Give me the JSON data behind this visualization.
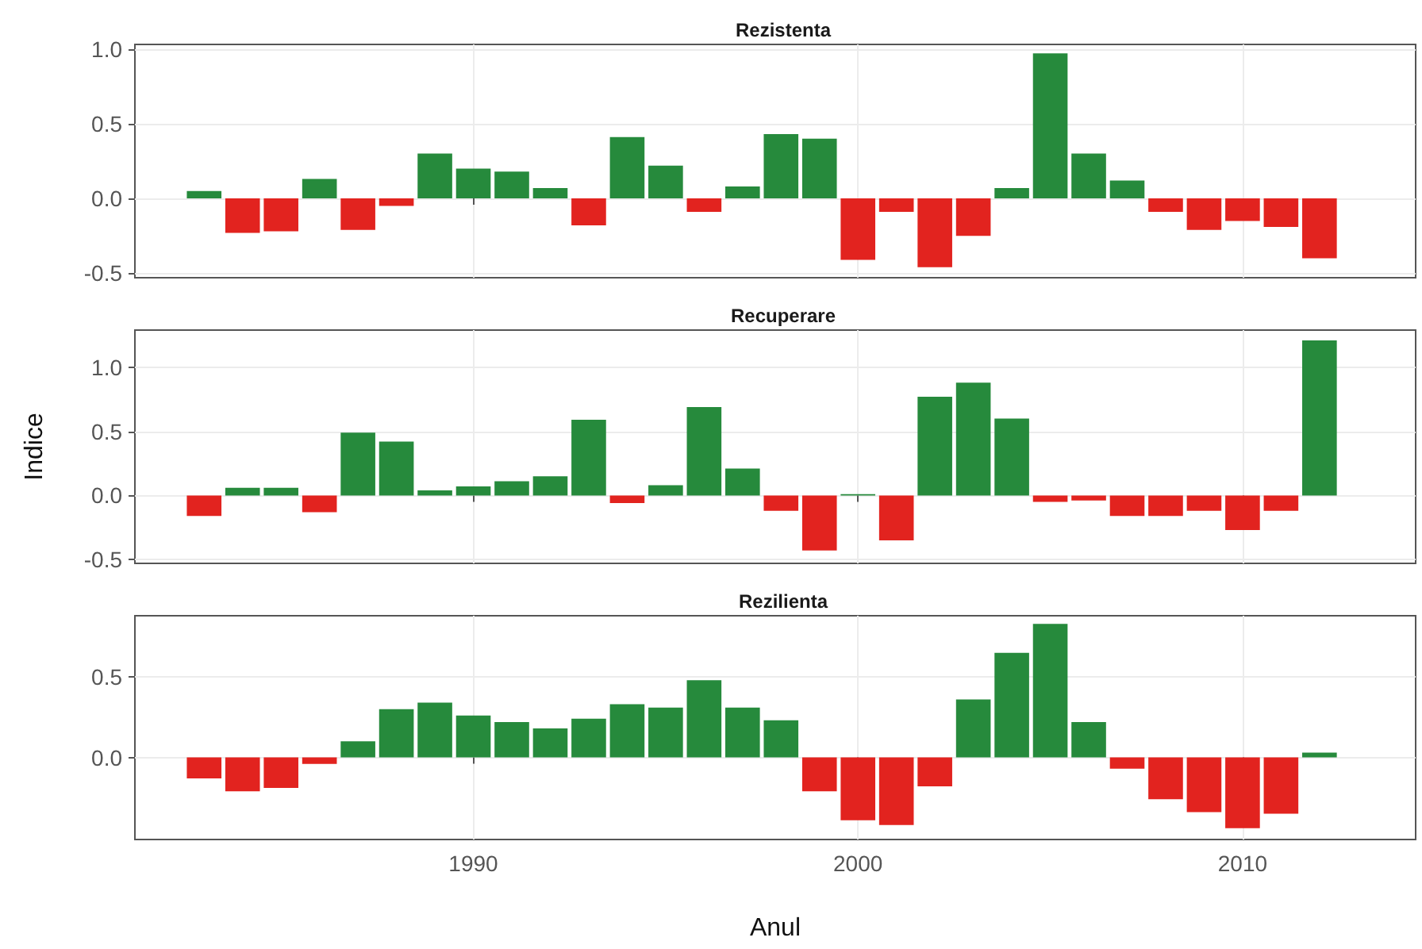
{
  "chart_data": [
    {
      "type": "bar",
      "title": "Rezistenta",
      "tick_labels": "y",
      "grid": true,
      "x": [
        1983,
        1984,
        1985,
        1986,
        1987,
        1988,
        1989,
        1990,
        1991,
        1992,
        1993,
        1994,
        1995,
        1996,
        1997,
        1998,
        1999,
        2000,
        2001,
        2002,
        2003,
        2004,
        2005,
        2006,
        2007,
        2008,
        2009,
        2010,
        2011,
        2012
      ],
      "values": [
        0.05,
        -0.23,
        -0.22,
        0.13,
        -0.21,
        -0.05,
        0.3,
        0.2,
        0.18,
        0.07,
        -0.18,
        0.41,
        0.22,
        -0.09,
        0.08,
        0.43,
        0.4,
        -0.41,
        -0.09,
        -0.46,
        -0.25,
        0.07,
        0.97,
        0.3,
        0.12,
        -0.09,
        -0.21,
        -0.15,
        -0.19,
        -0.4
      ],
      "colors": [
        "#268a3c",
        "#e2231f",
        "#e2231f",
        "#268a3c",
        "#e2231f",
        "#e2231f",
        "#268a3c",
        "#268a3c",
        "#268a3c",
        "#268a3c",
        "#e2231f",
        "#268a3c",
        "#268a3c",
        "#e2231f",
        "#268a3c",
        "#268a3c",
        "#268a3c",
        "#e2231f",
        "#e2231f",
        "#e2231f",
        "#e2231f",
        "#268a3c",
        "#268a3c",
        "#268a3c",
        "#268a3c",
        "#e2231f",
        "#e2231f",
        "#e2231f",
        "#e2231f",
        "#e2231f"
      ],
      "xlim": [
        1981.2,
        2014.5
      ],
      "xticks": [
        1990,
        2000,
        2010
      ],
      "ylim": [
        -0.53,
        1.03
      ],
      "yticks": [
        {
          "value": -0.5,
          "label": "-0.5"
        },
        {
          "value": 0,
          "label": "0.0"
        },
        {
          "value": 0.5,
          "label": "0.5"
        },
        {
          "value": 1,
          "label": "1.0"
        }
      ]
    },
    {
      "type": "bar",
      "title": "Recuperare",
      "ylabel": "Indice",
      "tick_labels": "y",
      "grid": true,
      "x": [
        1983,
        1984,
        1985,
        1986,
        1987,
        1988,
        1989,
        1990,
        1991,
        1992,
        1993,
        1994,
        1995,
        1996,
        1997,
        1998,
        1999,
        2000,
        2001,
        2002,
        2003,
        2004,
        2005,
        2006,
        2007,
        2008,
        2009,
        2010,
        2011,
        2012
      ],
      "values": [
        -0.16,
        0.06,
        0.06,
        -0.13,
        0.49,
        0.42,
        0.04,
        0.07,
        0.11,
        0.15,
        0.59,
        -0.06,
        0.08,
        0.69,
        0.21,
        -0.12,
        -0.43,
        0.01,
        -0.35,
        0.77,
        0.88,
        0.6,
        -0.05,
        -0.04,
        -0.16,
        -0.16,
        -0.12,
        -0.27,
        -0.12,
        1.21
      ],
      "colors": [
        "#e2231f",
        "#268a3c",
        "#268a3c",
        "#e2231f",
        "#268a3c",
        "#268a3c",
        "#268a3c",
        "#268a3c",
        "#268a3c",
        "#268a3c",
        "#268a3c",
        "#e2231f",
        "#268a3c",
        "#268a3c",
        "#268a3c",
        "#e2231f",
        "#e2231f",
        "#268a3c",
        "#e2231f",
        "#268a3c",
        "#268a3c",
        "#268a3c",
        "#e2231f",
        "#e2231f",
        "#e2231f",
        "#e2231f",
        "#e2231f",
        "#e2231f",
        "#e2231f",
        "#268a3c"
      ],
      "xlim": [
        1981.2,
        2014.5
      ],
      "xticks": [
        1990,
        2000,
        2010
      ],
      "ylim": [
        -0.53,
        1.29
      ],
      "yticks": [
        {
          "value": -0.5,
          "label": "-0.5"
        },
        {
          "value": 0,
          "label": "0.0"
        },
        {
          "value": 0.5,
          "label": "0.5"
        },
        {
          "value": 1,
          "label": "1.0"
        }
      ]
    },
    {
      "type": "bar",
      "title": "Rezilienta",
      "xlabel": "Anul",
      "grid": true,
      "x": [
        1983,
        1984,
        1985,
        1986,
        1987,
        1988,
        1989,
        1990,
        1991,
        1992,
        1993,
        1994,
        1995,
        1996,
        1997,
        1998,
        1999,
        2000,
        2001,
        2002,
        2003,
        2004,
        2005,
        2006,
        2007,
        2008,
        2009,
        2010,
        2011,
        2012
      ],
      "values": [
        -0.13,
        -0.21,
        -0.19,
        -0.04,
        0.1,
        0.3,
        0.34,
        0.26,
        0.22,
        0.18,
        0.24,
        0.33,
        0.31,
        0.48,
        0.31,
        0.23,
        -0.21,
        -0.39,
        -0.42,
        -0.18,
        0.36,
        0.65,
        0.83,
        0.22,
        -0.07,
        -0.26,
        -0.34,
        -0.44,
        -0.35,
        0.03
      ],
      "colors": [
        "#e2231f",
        "#e2231f",
        "#e2231f",
        "#e2231f",
        "#268a3c",
        "#268a3c",
        "#268a3c",
        "#268a3c",
        "#268a3c",
        "#268a3c",
        "#268a3c",
        "#268a3c",
        "#268a3c",
        "#268a3c",
        "#268a3c",
        "#268a3c",
        "#e2231f",
        "#e2231f",
        "#e2231f",
        "#e2231f",
        "#268a3c",
        "#268a3c",
        "#268a3c",
        "#268a3c",
        "#e2231f",
        "#e2231f",
        "#e2231f",
        "#e2231f",
        "#e2231f",
        "#268a3c"
      ],
      "xlim": [
        1981.2,
        2014.5
      ],
      "xticks": [
        1990,
        2000,
        2010
      ],
      "ylim": [
        -0.51,
        0.88
      ],
      "yticks": [
        {
          "value": 0,
          "label": "0.0"
        },
        {
          "value": 0.5,
          "label": "0.5"
        }
      ]
    }
  ]
}
